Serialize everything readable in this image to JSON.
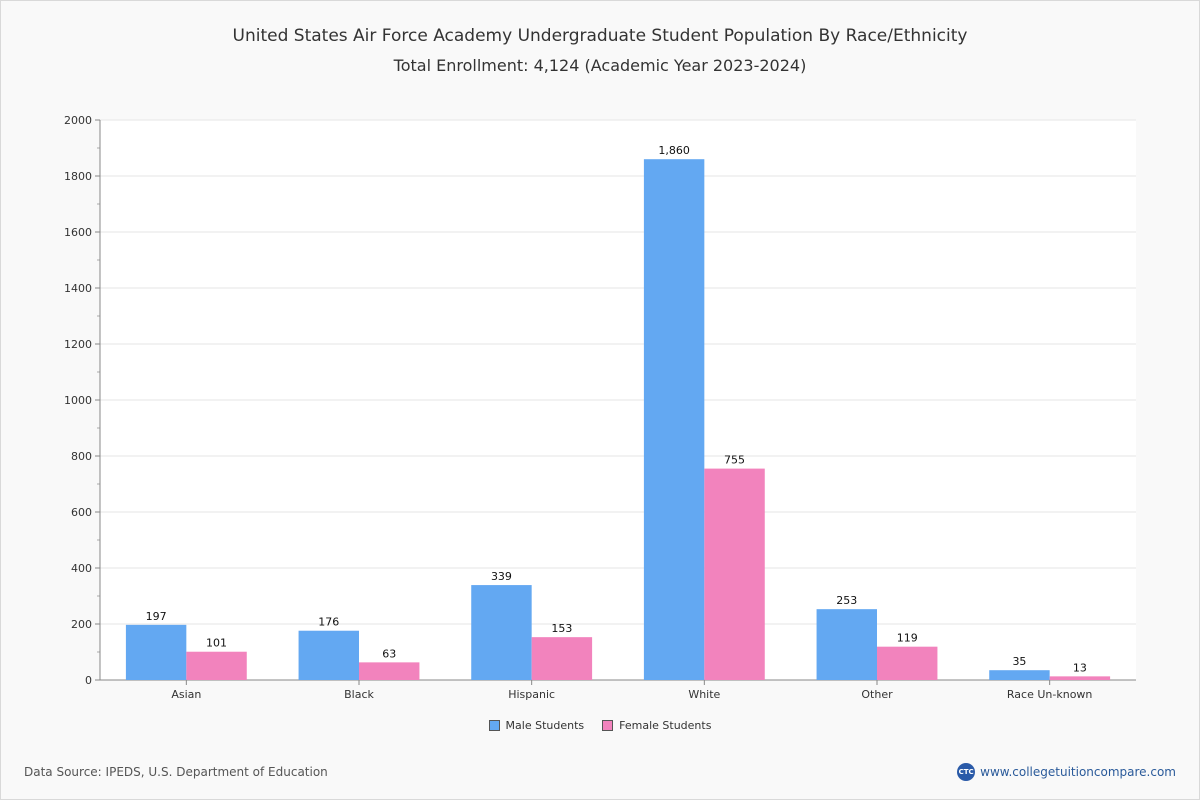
{
  "chart_data": {
    "type": "bar",
    "title": "United States Air Force Academy Undergraduate Student Population By Race/Ethnicity",
    "subtitle": "Total Enrollment: 4,124 (Academic Year 2023-2024)",
    "categories": [
      "Asian",
      "Black",
      "Hispanic",
      "White",
      "Other",
      "Race Un-known"
    ],
    "series": [
      {
        "name": "Male Students",
        "color": "#63a8f2",
        "values": [
          197,
          176,
          339,
          1860,
          253,
          35
        ],
        "labels": [
          "197",
          "176",
          "339",
          "1,860",
          "253",
          "35"
        ]
      },
      {
        "name": "Female Students",
        "color": "#f283bd",
        "values": [
          101,
          63,
          153,
          755,
          119,
          13
        ],
        "labels": [
          "101",
          "63",
          "153",
          "755",
          "119",
          "13"
        ]
      }
    ],
    "ylim": [
      0,
      2000
    ],
    "yticks": [
      0,
      200,
      400,
      600,
      800,
      1000,
      1200,
      1400,
      1600,
      1800,
      2000
    ],
    "ytick_labels": [
      "0",
      "200",
      "400",
      "600",
      "800",
      "1000",
      "1200",
      "1400",
      "1600",
      "1800",
      "2000"
    ],
    "xlabel": "",
    "ylabel": "",
    "grid": true,
    "legend_position": "bottom-center"
  },
  "footer": {
    "source": "Data Source: IPEDS, U.S. Department of Education",
    "brand_logo": "CTC",
    "brand_url": "www.collegetuitioncompare.com"
  }
}
